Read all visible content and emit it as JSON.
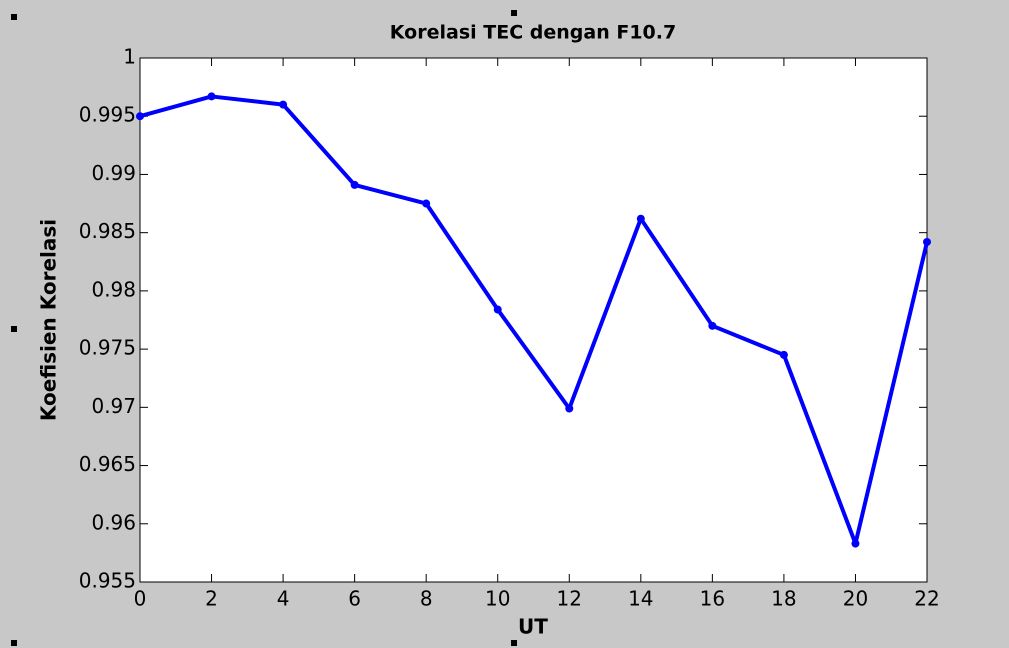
{
  "chart_data": {
    "type": "line",
    "title": "Korelasi TEC dengan F10.7",
    "xlabel": "UT",
    "ylabel": "Koefisien Korelasi",
    "x": [
      0,
      2,
      4,
      6,
      8,
      10,
      12,
      14,
      16,
      18,
      20,
      22
    ],
    "series": [
      {
        "color": "#0000ff",
        "values": [
          0.995,
          0.9967,
          0.996,
          0.9891,
          0.9875,
          0.9784,
          0.9699,
          0.9862,
          0.977,
          0.9745,
          0.9583,
          0.9842
        ]
      }
    ],
    "xlim": [
      0,
      22
    ],
    "xticks": [
      0,
      2,
      4,
      6,
      8,
      10,
      12,
      14,
      16,
      18,
      20,
      22
    ],
    "ylim": [
      0.955,
      1
    ],
    "yticks": [
      0.955,
      0.96,
      0.965,
      0.97,
      0.975,
      0.98,
      0.985,
      0.99,
      0.995,
      1
    ],
    "grid": false
  }
}
